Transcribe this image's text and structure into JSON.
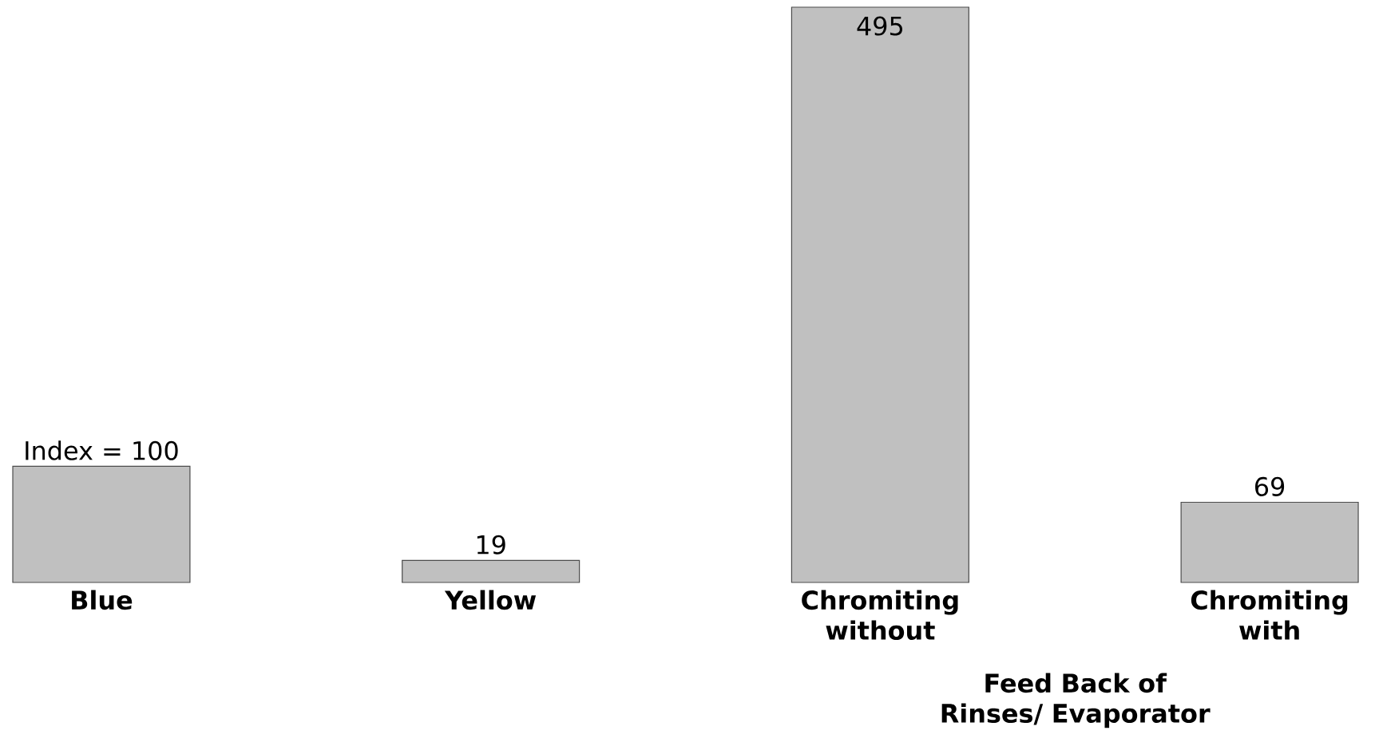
{
  "chart_data": {
    "type": "bar",
    "categories": [
      "Blue",
      "Yellow",
      "Chromiting without",
      "Chromiting with"
    ],
    "values": [
      100,
      19,
      495,
      69
    ],
    "value_labels": [
      "Index = 100",
      "19",
      "495",
      "69"
    ],
    "color": "#c0c0c0",
    "annotations": [
      "Feed Back of Rinses/ Evaporator"
    ]
  }
}
